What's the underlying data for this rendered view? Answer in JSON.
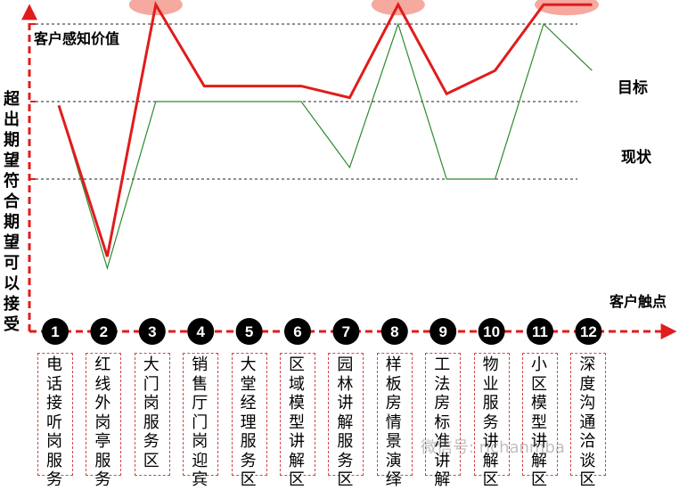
{
  "chart_data": {
    "type": "line",
    "title": "",
    "ylabel": "客户感知价值",
    "xlabel": "客户触点",
    "side_label": "超出期望符合期望可以接受",
    "categories": [
      {
        "num": "1",
        "name": "电话接听岗服务"
      },
      {
        "num": "2",
        "name": "红线外岗亭服务"
      },
      {
        "num": "3",
        "name": "大门岗服务区"
      },
      {
        "num": "4",
        "name": "销售厅门岗迎宾"
      },
      {
        "num": "5",
        "name": "大堂经理服务区"
      },
      {
        "num": "6",
        "name": "区域模型讲解区"
      },
      {
        "num": "7",
        "name": "园林讲解服务区"
      },
      {
        "num": "8",
        "name": "样板房情景演绎"
      },
      {
        "num": "9",
        "name": "工法房标准讲解"
      },
      {
        "num": "10",
        "name": "物业服务讲解区"
      },
      {
        "num": "11",
        "name": "小区模型讲解区"
      },
      {
        "num": "12",
        "name": "深度沟通洽谈区"
      }
    ],
    "ylim": [
      0,
      5
    ],
    "reference_levels": [
      1,
      2,
      3
    ],
    "series": [
      {
        "name": "目标",
        "color": "#e01c1c",
        "values": [
          1.95,
          0.0,
          3.25,
          2.2,
          2.2,
          2.2,
          2.05,
          3.25,
          2.1,
          2.4,
          3.25,
          3.25
        ],
        "highlights": [
          2,
          7,
          10
        ]
      },
      {
        "name": "现状",
        "color": "#2e8b2e",
        "values": [
          1.95,
          -0.15,
          2.0,
          2.0,
          2.0,
          2.0,
          1.15,
          3.0,
          1.0,
          1.0,
          3.0,
          2.4
        ]
      }
    ]
  },
  "watermark": "微信号: rjchanmba"
}
